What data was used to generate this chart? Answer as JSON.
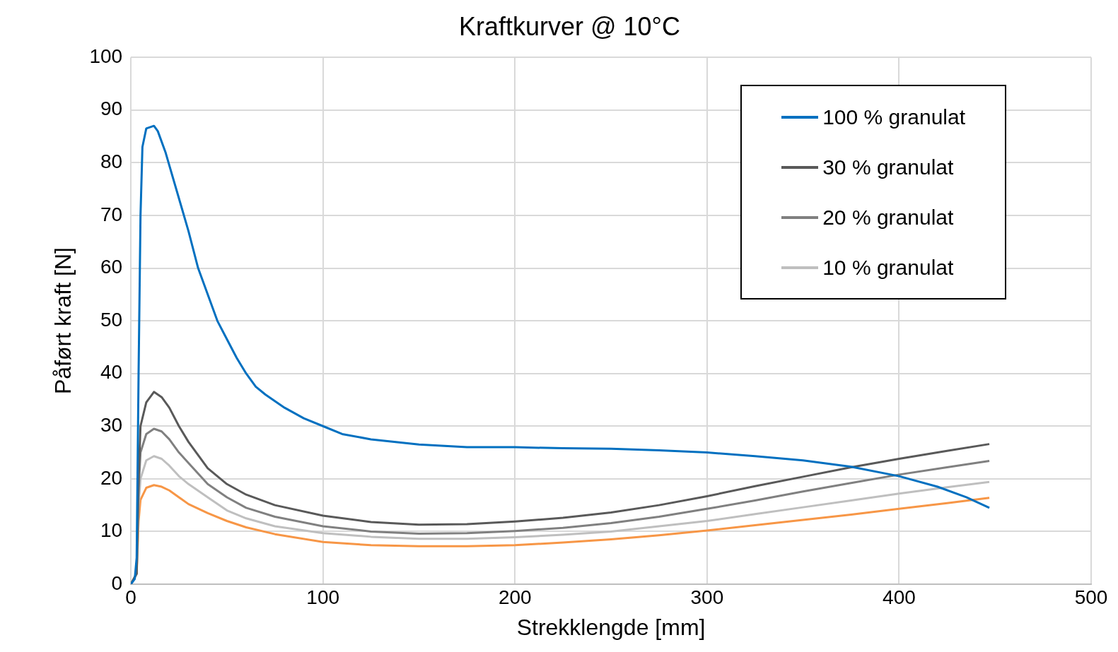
{
  "chart_data": {
    "type": "line",
    "title": "Kraftkurver @ 10°C",
    "xlabel": "Strekklengde [mm]",
    "ylabel": "Påført kraft [N]",
    "xlim": [
      0,
      500
    ],
    "xticks": [
      0,
      100,
      200,
      300,
      400,
      500
    ],
    "ylim": [
      0,
      100
    ],
    "yticks": [
      0,
      10,
      20,
      30,
      40,
      50,
      60,
      70,
      80,
      90,
      100
    ],
    "grid": true,
    "legend": "top right",
    "marker": "none",
    "line_style": "solid",
    "x": [
      0,
      3,
      4,
      5,
      8,
      12,
      16,
      20,
      25,
      30,
      40,
      50,
      60,
      75,
      100,
      125,
      150,
      175,
      200,
      225,
      250,
      275,
      300,
      325,
      350,
      375,
      400,
      425,
      447
    ],
    "series": [
      {
        "name": "100 % granulat",
        "color": "#0070c0",
        "x": [
          0,
          2,
          3,
          4,
          5,
          6,
          8,
          12,
          14,
          18,
          22,
          26,
          30,
          35,
          40,
          45,
          50,
          55,
          60,
          65,
          70,
          80,
          90,
          100,
          110,
          125,
          150,
          175,
          200,
          225,
          250,
          275,
          300,
          325,
          350,
          375,
          400,
          420,
          435,
          447
        ],
        "values": [
          0,
          1,
          5,
          40,
          70,
          83,
          86.5,
          87,
          86,
          82,
          77,
          72,
          67,
          60,
          55,
          50,
          46.5,
          43,
          40,
          37.5,
          36,
          33.5,
          31.5,
          30,
          28.5,
          27.5,
          26.5,
          26,
          26,
          25.8,
          25.7,
          25.4,
          25,
          24.3,
          23.5,
          22.3,
          20.5,
          18.5,
          16.5,
          14.5
        ]
      },
      {
        "name": "30 % granulat",
        "color": "#595959",
        "values": [
          0,
          2,
          20,
          30,
          34.5,
          36.5,
          35.5,
          33.5,
          30,
          27,
          22,
          19,
          17,
          15,
          13,
          11.8,
          11.3,
          11.4,
          11.9,
          12.6,
          13.6,
          15,
          16.7,
          18.6,
          20.4,
          22.2,
          23.8,
          25.3,
          26.6
        ]
      },
      {
        "name": "20 % granulat",
        "color": "#808080",
        "values": [
          0,
          2,
          18,
          25,
          28.5,
          29.5,
          29,
          27.5,
          25,
          23,
          19,
          16.5,
          14.5,
          12.8,
          11,
          10,
          9.6,
          9.7,
          10.1,
          10.7,
          11.6,
          12.8,
          14.3,
          15.9,
          17.6,
          19.2,
          20.8,
          22.2,
          23.4
        ]
      },
      {
        "name": "10 % granulat",
        "color": "#bfbfbf",
        "values": [
          0,
          2,
          15,
          20,
          23.5,
          24.3,
          23.8,
          22.5,
          20.5,
          19,
          16.5,
          14,
          12.5,
          11,
          9.7,
          9,
          8.6,
          8.6,
          8.9,
          9.4,
          10,
          11,
          12,
          13.3,
          14.6,
          15.9,
          17.2,
          18.4,
          19.4
        ]
      },
      {
        "color": "#f79646",
        "values": [
          0,
          2,
          12,
          16,
          18.3,
          18.8,
          18.5,
          17.8,
          16.5,
          15.2,
          13.5,
          12,
          10.8,
          9.5,
          8,
          7.4,
          7.2,
          7.2,
          7.4,
          7.9,
          8.5,
          9.3,
          10.2,
          11.2,
          12.2,
          13.2,
          14.3,
          15.4,
          16.4
        ]
      }
    ]
  }
}
